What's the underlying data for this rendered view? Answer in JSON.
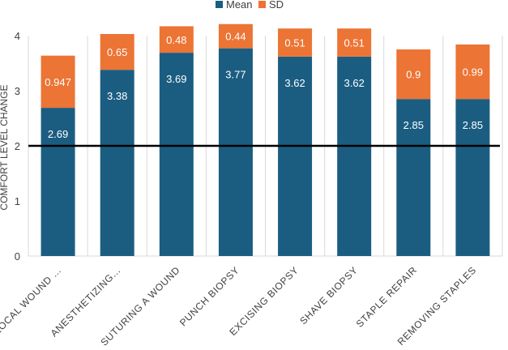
{
  "chart_data": {
    "type": "bar",
    "stacked": true,
    "title": "",
    "xlabel": "",
    "ylabel": "COMFORT LEVEL CHANGE",
    "ylim": [
      0,
      4
    ],
    "yticks": [
      "0",
      "1",
      "2",
      "3",
      "4"
    ],
    "grid": "vertical separators",
    "legend": "top-center",
    "reference_line": 2,
    "categories": [
      "LOCAL WOUND …",
      "ANESTHETIZING…",
      "SUTURING A WOUND",
      "PUNCH BIOPSY",
      "EXCISING BIOPSY",
      "SHAVE BIOPSY",
      "STAPLE REPAIR",
      "REMOVING STAPLES"
    ],
    "series": [
      {
        "name": "Mean",
        "color": "#1b5d81",
        "values": [
          2.69,
          3.38,
          3.69,
          3.77,
          3.62,
          3.62,
          2.85,
          2.85
        ],
        "labels": [
          "2.69",
          "3.38",
          "3.69",
          "3.77",
          "3.62",
          "3.62",
          "2.85",
          "2.85"
        ]
      },
      {
        "name": "SD",
        "color": "#ec7434",
        "values": [
          0.947,
          0.65,
          0.48,
          0.44,
          0.51,
          0.51,
          0.9,
          0.99
        ],
        "labels": [
          "0.947",
          "0.65",
          "0.48",
          "0.44",
          "0.51",
          "0.51",
          "0.9",
          "0.99"
        ]
      }
    ]
  }
}
